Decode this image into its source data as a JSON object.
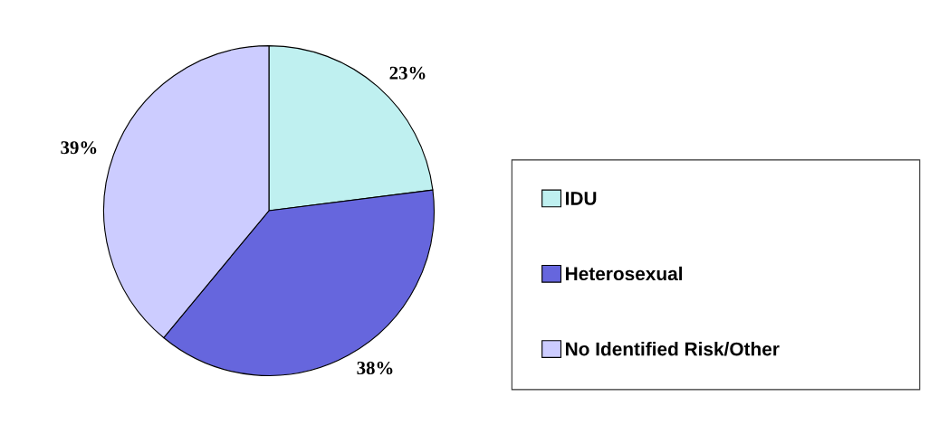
{
  "chart_data": {
    "type": "pie",
    "categories": [
      "IDU",
      "Heterosexual",
      "No Identified Risk/Other"
    ],
    "values": [
      23,
      38,
      39
    ],
    "colors": [
      "#bff0f0",
      "#6666dd",
      "#ccccff"
    ],
    "value_labels": [
      "23%",
      "38%",
      "39%"
    ],
    "legend": "right"
  }
}
